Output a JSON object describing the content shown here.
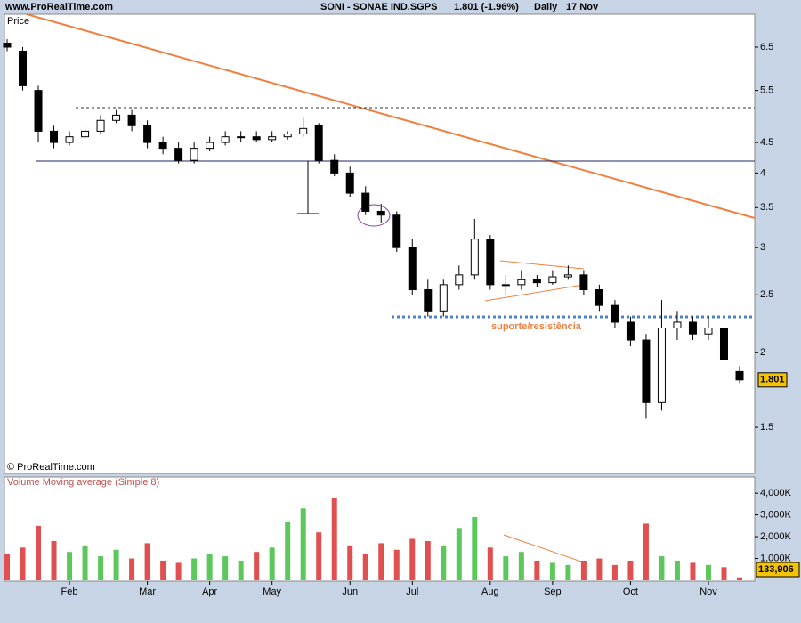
{
  "header": {
    "site": "www.ProRealTime.com",
    "symbol": "SONI - SONAE IND.SGPS",
    "quote": "1.801 (-1.96%)",
    "period": "Daily",
    "date": "17 Nov"
  },
  "chart_data": [
    {
      "type": "candlestick",
      "title": "Price",
      "source": "© ProRealTime.com",
      "annotation": "suporte/resistência",
      "log_scale": true,
      "grid": false,
      "ylim": [
        1.255,
        7.38
      ],
      "yticks": [
        6.5,
        5.5,
        4.5,
        4,
        3.5,
        3,
        2.5,
        2,
        1.5
      ],
      "series": [
        {
          "name": "SONI",
          "open": [
            6.6,
            6.4,
            5.5,
            4.7,
            4.5,
            4.6,
            4.7,
            4.9,
            5.0,
            4.8,
            4.5,
            4.4,
            4.2,
            4.4,
            4.5,
            4.6,
            4.6,
            4.55,
            4.6,
            4.65,
            4.8,
            4.2,
            4.0,
            3.7,
            3.45,
            3.4,
            3.0,
            2.55,
            2.35,
            2.6,
            2.7,
            3.1,
            2.6,
            2.6,
            2.65,
            2.62,
            2.68,
            2.7,
            2.55,
            2.4,
            2.25,
            2.1,
            1.65,
            2.2,
            2.25,
            2.15,
            2.2,
            1.86
          ],
          "high": [
            6.7,
            6.5,
            5.6,
            4.8,
            4.7,
            4.8,
            5.0,
            5.1,
            5.1,
            4.9,
            4.6,
            4.5,
            4.5,
            4.6,
            4.7,
            4.7,
            4.7,
            4.7,
            4.7,
            4.95,
            4.85,
            4.3,
            4.1,
            3.8,
            3.55,
            3.45,
            3.1,
            2.65,
            2.65,
            2.8,
            3.35,
            3.15,
            2.7,
            2.75,
            2.7,
            2.75,
            2.8,
            2.75,
            2.6,
            2.45,
            2.3,
            2.15,
            2.45,
            2.35,
            2.3,
            2.3,
            2.25,
            1.9
          ],
          "low": [
            6.4,
            5.5,
            4.5,
            4.4,
            4.45,
            4.55,
            4.65,
            4.85,
            4.7,
            4.4,
            4.3,
            4.15,
            4.15,
            4.35,
            4.45,
            4.5,
            4.5,
            4.5,
            4.55,
            4.6,
            4.15,
            3.95,
            3.65,
            3.4,
            3.3,
            2.95,
            2.5,
            2.3,
            2.3,
            2.55,
            2.65,
            2.55,
            2.5,
            2.55,
            2.58,
            2.6,
            2.65,
            2.5,
            2.35,
            2.2,
            2.05,
            1.55,
            1.6,
            2.1,
            2.1,
            2.1,
            1.9,
            1.78
          ],
          "close": [
            6.5,
            5.6,
            4.7,
            4.5,
            4.6,
            4.7,
            4.9,
            5.0,
            4.8,
            4.5,
            4.4,
            4.2,
            4.4,
            4.5,
            4.6,
            4.6,
            4.55,
            4.6,
            4.65,
            4.75,
            4.2,
            4.0,
            3.7,
            3.45,
            3.4,
            3.0,
            2.55,
            2.35,
            2.6,
            2.7,
            3.1,
            2.6,
            2.6,
            2.65,
            2.62,
            2.68,
            2.7,
            2.55,
            2.4,
            2.25,
            2.1,
            1.65,
            2.2,
            2.25,
            2.15,
            2.2,
            1.95,
            1.801
          ]
        }
      ]
    },
    {
      "type": "bar",
      "title": "Volume Moving average (Simple 8)",
      "categories": [
        null,
        null,
        null,
        null,
        "Feb",
        null,
        null,
        null,
        null,
        "Mar",
        null,
        null,
        null,
        "Apr",
        null,
        null,
        null,
        "May",
        null,
        null,
        null,
        null,
        "Jun",
        null,
        null,
        null,
        "Jul",
        null,
        null,
        null,
        null,
        "Aug",
        null,
        null,
        null,
        "Sep",
        null,
        null,
        null,
        null,
        "Oct",
        null,
        null,
        null,
        null,
        "Nov",
        null,
        null
      ],
      "ylim": [
        0,
        4700000
      ],
      "yticks": [
        {
          "value": 4000000,
          "label": "4,000K"
        },
        {
          "value": 3000000,
          "label": "3,000K"
        },
        {
          "value": 2000000,
          "label": "2,000K"
        },
        {
          "value": 1000000,
          "label": "1,000K"
        }
      ],
      "up_color": "#5cc85c",
      "down_color": "#e05050",
      "values": [
        1200000,
        1500000,
        2500000,
        1800000,
        1300000,
        1600000,
        1100000,
        1400000,
        1000000,
        1700000,
        900000,
        800000,
        1000000,
        1200000,
        1100000,
        900000,
        1300000,
        1500000,
        2700000,
        3300000,
        2200000,
        3800000,
        1600000,
        1200000,
        1700000,
        1400000,
        1900000,
        1800000,
        1600000,
        2400000,
        2900000,
        1500000,
        1100000,
        1300000,
        900000,
        800000,
        700000,
        900000,
        1000000,
        700000,
        900000,
        2600000,
        1100000,
        900000,
        800000,
        700000,
        600000,
        133906
      ],
      "value_labels": [
        null,
        null,
        null,
        null,
        null,
        null,
        null,
        null,
        null,
        null,
        null,
        null,
        null,
        null,
        null,
        null,
        null,
        null,
        null,
        null,
        null,
        null,
        null,
        null,
        null,
        null,
        null,
        null,
        null,
        null,
        null,
        null,
        null,
        null,
        null,
        null,
        null,
        null,
        null,
        null,
        null,
        null,
        null,
        null,
        null,
        null,
        null,
        "133,906"
      ]
    }
  ]
}
